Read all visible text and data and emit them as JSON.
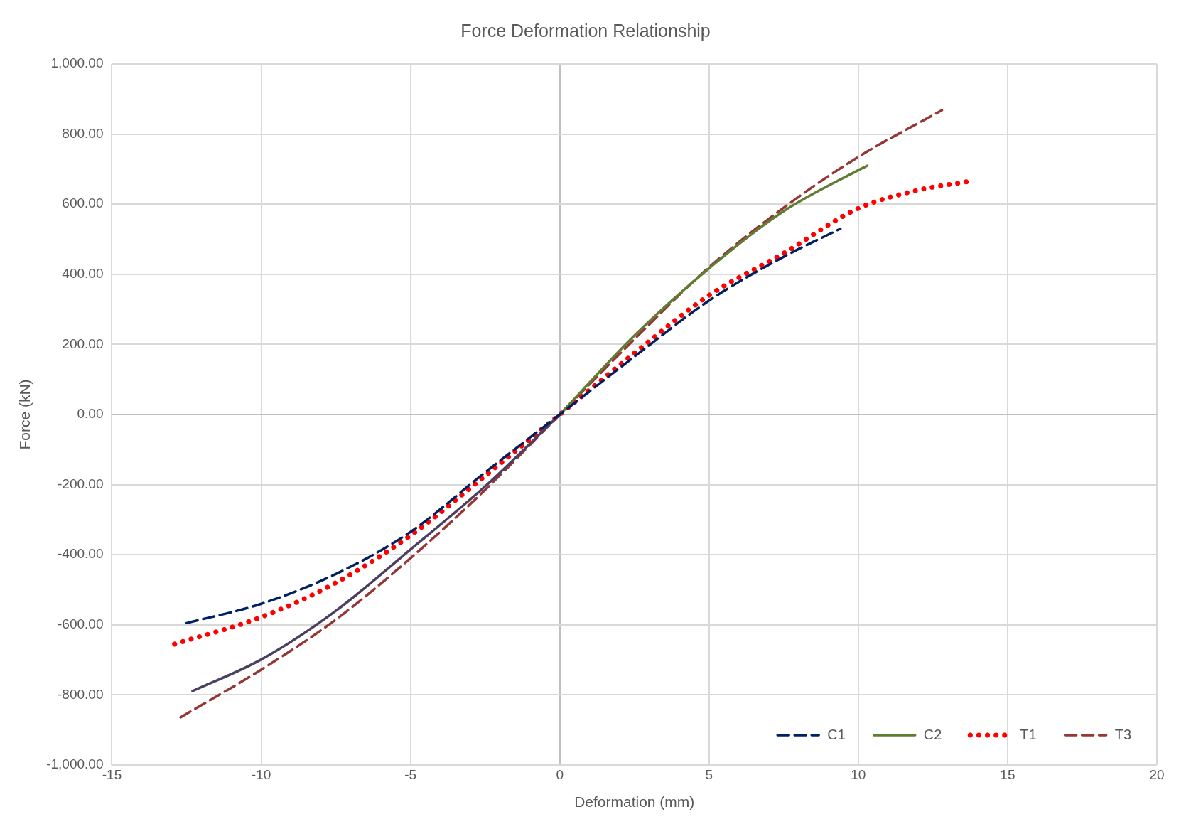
{
  "chart_data": {
    "type": "line",
    "title": "Force Deformation Relationship",
    "xlabel": "Deformation (mm)",
    "ylabel": "Force (kN)",
    "xlim": [
      -15,
      20
    ],
    "xticks": [
      -15,
      -10,
      -5,
      0,
      5,
      10,
      15,
      20
    ],
    "ylim": [
      -1000,
      1000
    ],
    "yticks": [
      {
        "value": -1000,
        "label": "-1,000.00"
      },
      {
        "value": -800,
        "label": "-800.00"
      },
      {
        "value": -600,
        "label": "-600.00"
      },
      {
        "value": -400,
        "label": "-400.00"
      },
      {
        "value": -200,
        "label": "-200.00"
      },
      {
        "value": 0,
        "label": "0.00"
      },
      {
        "value": 200,
        "label": "200.00"
      },
      {
        "value": 400,
        "label": "400.00"
      },
      {
        "value": 600,
        "label": "600.00"
      },
      {
        "value": 800,
        "label": "800.00"
      },
      {
        "value": 1000,
        "label": "1,000.00"
      }
    ],
    "grid": true,
    "legend": "bottom right",
    "marker": "none",
    "series": [
      {
        "name": "C1",
        "color": "#002060",
        "line_style": "dashed",
        "x": [
          -12.5,
          -10,
          -7.5,
          -5,
          -2.5,
          0,
          2.5,
          5,
          7.5,
          9.4
        ],
        "values": [
          -595,
          -540,
          -455,
          -335,
          -165,
          0,
          165,
          325,
          450,
          530
        ]
      },
      {
        "name": "C2",
        "color": "#5e7d32",
        "line_style": "solid",
        "x": [
          0,
          2.5,
          5,
          7.5,
          10,
          10.3
        ],
        "values": [
          0,
          225,
          417,
          580,
          697,
          710
        ]
      },
      {
        "color": "#4b3f62",
        "line_style": "solid",
        "x": [
          -12.3,
          -10,
          -7.5,
          -5,
          -2.5,
          0
        ],
        "values": [
          -789,
          -699,
          -560,
          -385,
          -205,
          0
        ]
      },
      {
        "name": "T1",
        "color": "#ff0000",
        "line_style": "dotted",
        "x": [
          -12.9,
          -10,
          -7.5,
          -5,
          -2.5,
          0,
          2.5,
          5,
          7.5,
          10,
          12,
          13.7
        ],
        "values": [
          -655,
          -578,
          -480,
          -345,
          -175,
          0,
          175,
          340,
          460,
          588,
          640,
          665
        ]
      },
      {
        "name": "T3",
        "color": "#953735",
        "line_style": "dashed",
        "x": [
          -12.7,
          -10,
          -7.5,
          -5,
          -2.5,
          0,
          2.5,
          5,
          7.5,
          10,
          12.8
        ],
        "values": [
          -864,
          -728,
          -585,
          -410,
          -215,
          0,
          215,
          420,
          590,
          735,
          868
        ]
      }
    ]
  }
}
